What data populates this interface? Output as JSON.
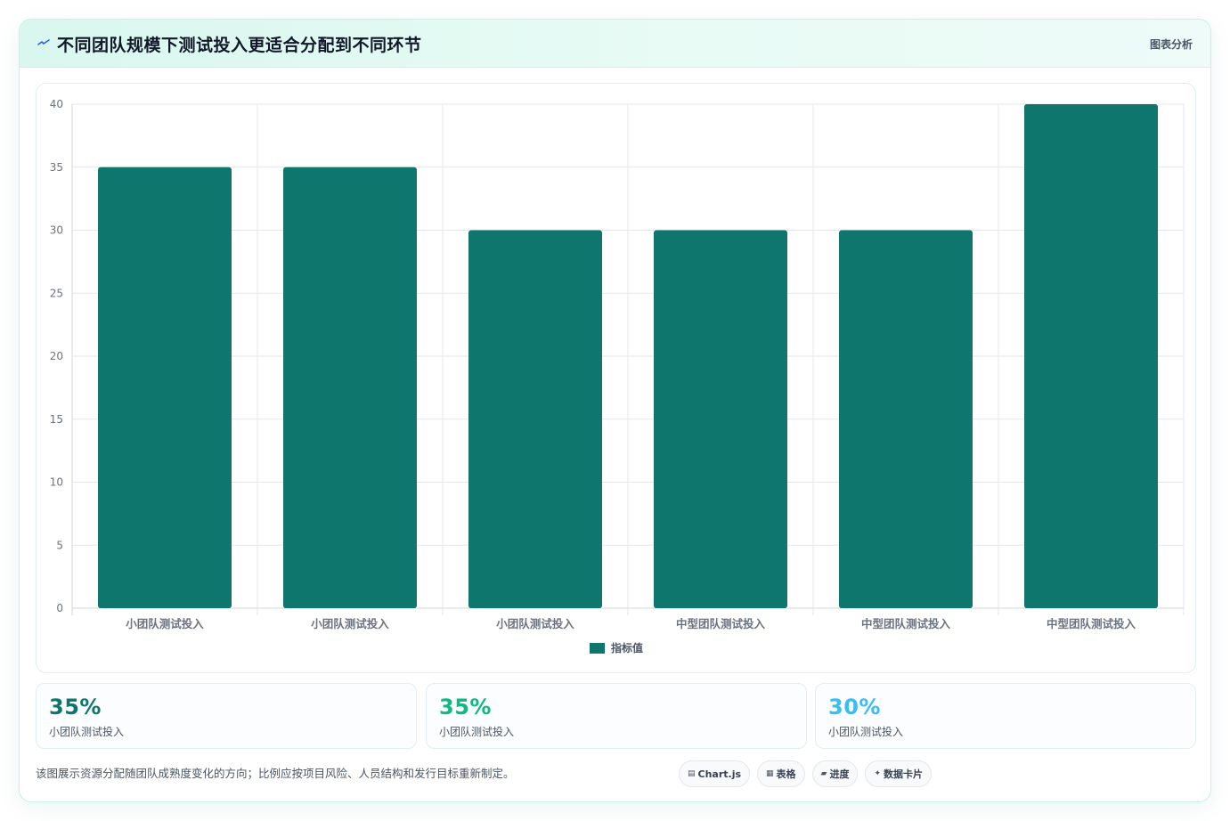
{
  "header": {
    "title": "不同团队规模下测试投入更适合分配到不同环节",
    "icon": "spark-icon",
    "tag": "图表分析"
  },
  "chart_data": {
    "type": "bar",
    "categories": [
      "小团队测试投入",
      "小团队测试投入",
      "小团队测试投入",
      "中型团队测试投入",
      "中型团队测试投入",
      "中型团队测试投入"
    ],
    "series": [
      {
        "name": "指标值",
        "values": [
          35,
          35,
          30,
          30,
          30,
          40
        ]
      }
    ],
    "ylim": [
      0,
      40
    ],
    "yticks": [
      0,
      5,
      10,
      15,
      20,
      25,
      30,
      35,
      40
    ],
    "bar_color": "#0f766e",
    "legend_position": "bottom",
    "grid": true
  },
  "stats": [
    {
      "value": "35%",
      "label": "小团队测试投入",
      "color": "#0f766e"
    },
    {
      "value": "35%",
      "label": "小团队测试投入",
      "color": "#10b981"
    },
    {
      "value": "30%",
      "label": "小团队测试投入",
      "color": "#38bdf8"
    }
  ],
  "footer": {
    "note": "该图展示资源分配随团队成熟度变化的方向；比例应按项目风险、人员结构和发行目标重新制定。",
    "pills": [
      {
        "icon": "▤",
        "icon_name": "chart-icon",
        "label": "Chart.js"
      },
      {
        "icon": "▦",
        "icon_name": "table-icon",
        "label": "表格"
      },
      {
        "icon": "▰",
        "icon_name": "progress-icon",
        "label": "进度"
      },
      {
        "icon": "✦",
        "icon_name": "sparkle-icon",
        "label": "数据卡片"
      }
    ]
  }
}
